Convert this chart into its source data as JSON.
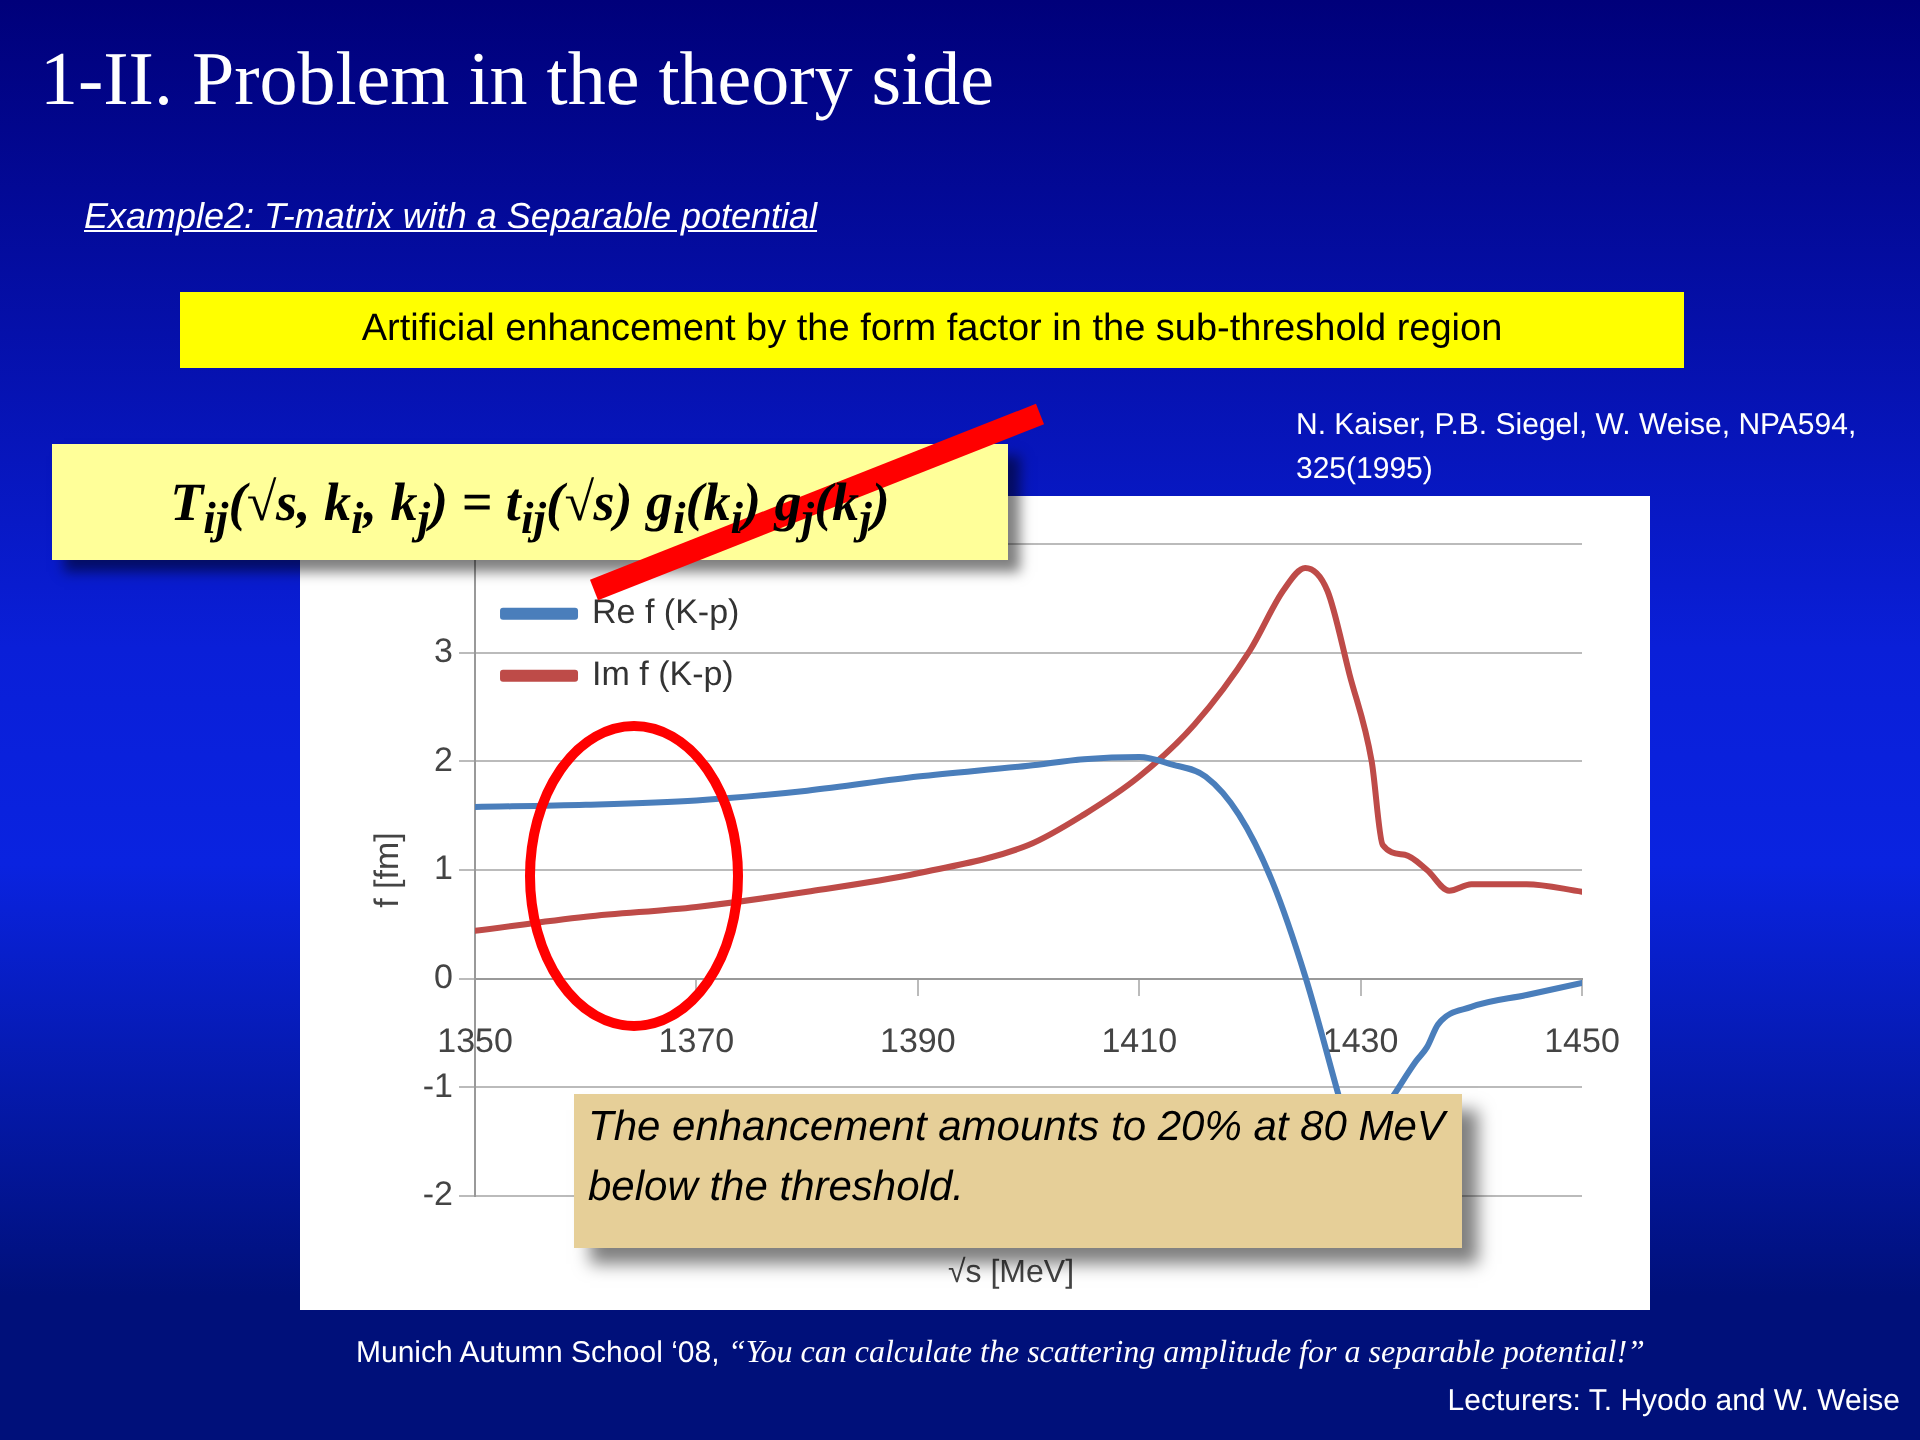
{
  "chart_data": {
    "type": "line",
    "title": "1-II. Problem in the theory side",
    "subtitle": "Example2: T-matrix with a Separable potential",
    "xlabel": "√s [MeV]",
    "ylabel": "f [fm]",
    "annotations": [
      "Artificial enhancement by the form factor in the sub-threshold region",
      "N. Kaiser, P.B. Siegel, W. Weise, NPA594, 325(1995)",
      "T$_{ij}$(√s, k$_{i}$, k$_{j}$) = t$_{ij}$(√s) g$_{i}$(k$_{i}$) g$_{j}$(k$_{j}$)",
      "The enhancement amounts to 20% at 80 MeV below the threshold.",
      "Munich Autumn School ‘08,",
      "“You can calculate the scattering amplitude for a separable potential!”",
      "Lecturers: T. Hyodo and W. Weise"
    ],
    "series": [
      {
        "name": "Re f (K-p)",
        "color": "#4a7ebb",
        "x": [
          1350,
          1360,
          1370,
          1380,
          1390,
          1400,
          1405,
          1410,
          1413,
          1416,
          1419,
          1422,
          1425,
          1428,
          1430,
          1432,
          1433,
          1435,
          1436,
          1437,
          1440,
          1445,
          1450
        ],
        "values": [
          1.58,
          1.6,
          1.64,
          1.73,
          1.86,
          1.96,
          2.02,
          2.04,
          1.97,
          1.86,
          1.51,
          0.9,
          0.02,
          -1.07,
          null,
          null,
          -1.07,
          -0.76,
          -0.63,
          -0.42,
          -0.26,
          -0.15,
          -0.04
        ]
      },
      {
        "name": "Im f (K-p)",
        "color": "#be4b48",
        "x": [
          1350,
          1360,
          1370,
          1380,
          1390,
          1400,
          1405,
          1410,
          1415,
          1420,
          1423,
          1425,
          1427,
          1429,
          1431,
          1432,
          1434,
          1436,
          1438,
          1440,
          1445,
          1450
        ],
        "values": [
          0.44,
          0.57,
          0.66,
          0.8,
          0.97,
          1.23,
          1.51,
          1.86,
          2.34,
          3.02,
          3.57,
          3.78,
          3.57,
          2.8,
          2.0,
          1.23,
          1.14,
          1.0,
          0.81,
          0.87,
          0.87,
          0.8
        ]
      }
    ],
    "xlim": [
      1350,
      1450
    ],
    "xticks": [
      1350,
      1370,
      1390,
      1410,
      1430,
      1450
    ],
    "ylim": [
      -2,
      4
    ],
    "yticks": [
      -2,
      -1,
      0,
      1,
      2,
      3,
      {
        "value": 4,
        "label": null
      }
    ],
    "grid": "y",
    "legend": "top left",
    "marker": "none",
    "line_style": "solid"
  }
}
